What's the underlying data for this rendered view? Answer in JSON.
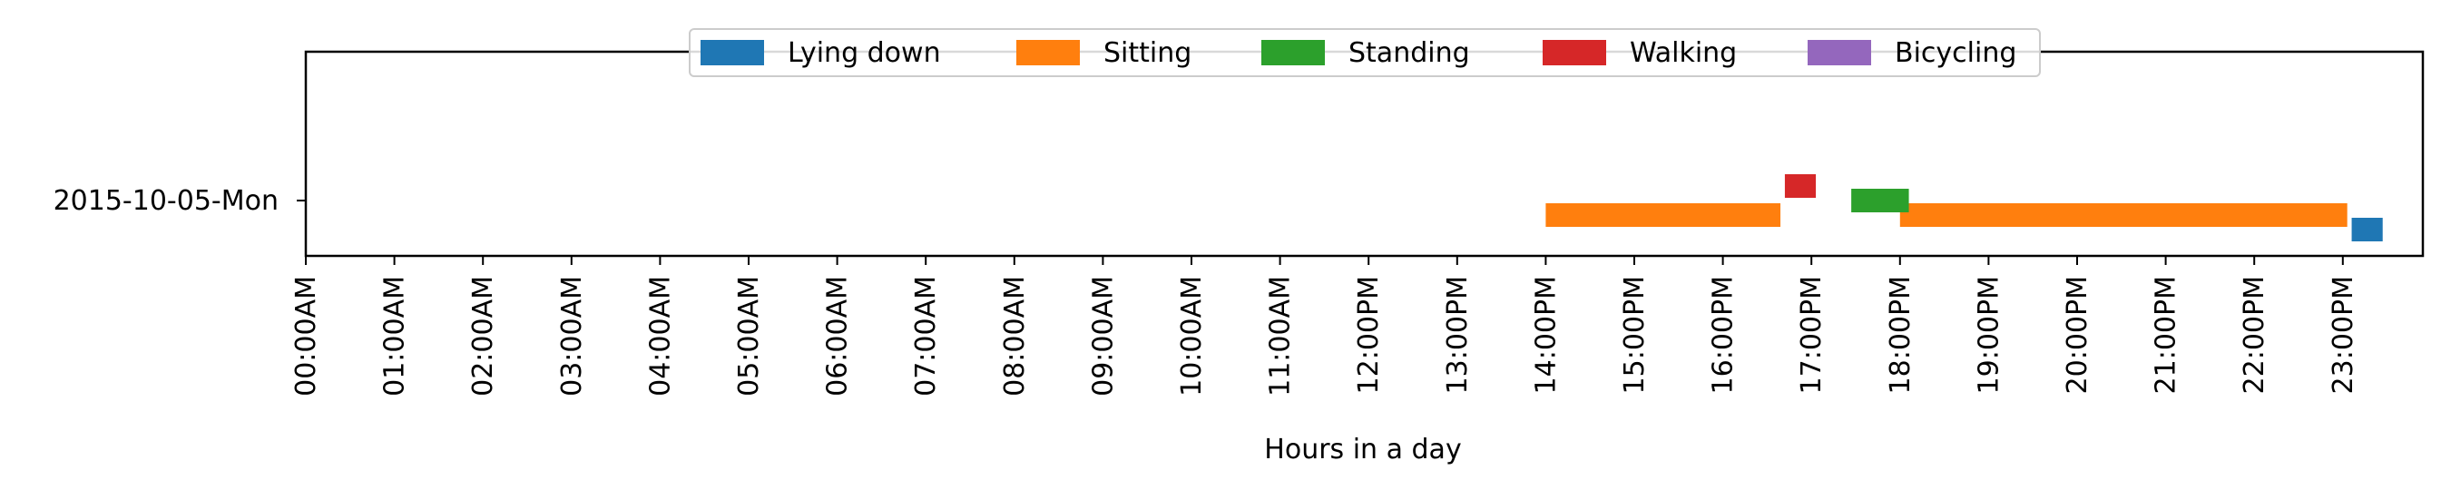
{
  "chart_data": {
    "type": "bar",
    "orientation": "horizontal-timeline",
    "xlabel": "Hours in a day",
    "xlim": [
      0,
      24
    ],
    "x_tick_labels": [
      "00:00AM",
      "01:00AM",
      "02:00AM",
      "03:00AM",
      "04:00AM",
      "05:00AM",
      "06:00AM",
      "07:00AM",
      "08:00AM",
      "09:00AM",
      "10:00AM",
      "11:00AM",
      "12:00PM",
      "13:00PM",
      "14:00PM",
      "15:00PM",
      "16:00PM",
      "17:00PM",
      "18:00PM",
      "19:00PM",
      "20:00PM",
      "21:00PM",
      "22:00PM",
      "23:00PM"
    ],
    "categories": [
      "2015-10-05-Mon"
    ],
    "legend_position": "top-center",
    "series": [
      {
        "name": "Lying down",
        "color": "#1f77b4",
        "segments": [
          {
            "start": 23.1,
            "end": 23.45
          }
        ]
      },
      {
        "name": "Sitting",
        "color": "#ff7f0e",
        "segments": [
          {
            "start": 14.0,
            "end": 16.65
          },
          {
            "start": 18.0,
            "end": 23.05
          }
        ]
      },
      {
        "name": "Standing",
        "color": "#2ca02c",
        "segments": [
          {
            "start": 17.45,
            "end": 18.1
          }
        ]
      },
      {
        "name": "Walking",
        "color": "#d62728",
        "segments": [
          {
            "start": 16.7,
            "end": 17.05
          }
        ]
      },
      {
        "name": "Bicycling",
        "color": "#9467bd",
        "segments": []
      }
    ]
  }
}
